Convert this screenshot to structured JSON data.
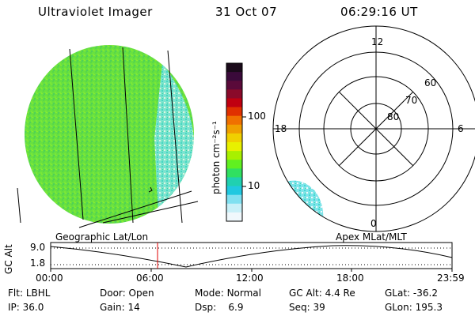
{
  "header": {
    "instrument": "Ultraviolet Imager",
    "date": "31 Oct 07",
    "time": "06:29:16 UT"
  },
  "colorbar": {
    "label": "photon cm⁻²s⁻¹",
    "ticks": [
      "100",
      "10"
    ],
    "colors": [
      "#1a0a1a",
      "#3a0a3a",
      "#5a0a3a",
      "#8a0a2a",
      "#c00010",
      "#e03000",
      "#f07000",
      "#f0a000",
      "#f0d000",
      "#e8f000",
      "#a8f000",
      "#60f020",
      "#30e060",
      "#20d0b0",
      "#20c8e0",
      "#80e0f0",
      "#c8f0f8",
      "#f0f8fc"
    ]
  },
  "polar": {
    "mlt_labels": {
      "top": "12",
      "left": "18",
      "right": "6",
      "bottom": "0"
    },
    "lat_labels": [
      "60",
      "70",
      "80"
    ]
  },
  "strip": {
    "left_label": "Geographic Lat/Lon",
    "right_label": "Apex  MLat/MLT",
    "axis_label": "GC Alt",
    "y_ticks": [
      "9.0",
      "1.8"
    ],
    "x_ticks": [
      "00:00",
      "06:00",
      "12:00",
      "18:00",
      "23:59"
    ]
  },
  "info": {
    "row1": [
      {
        "label": "Flt:",
        "value": "LBHL"
      },
      {
        "label": "Door:",
        "value": "Open"
      },
      {
        "label": "Mode:",
        "value": "Normal"
      },
      {
        "label": "GC Alt:",
        "value": "4.4 Re"
      },
      {
        "label": "GLat:",
        "value": "-36.2"
      }
    ],
    "row2": [
      {
        "label": "IP:",
        "value": "36.0"
      },
      {
        "label": "Gain:",
        "value": "14"
      },
      {
        "label": "Dsp:",
        "value": "6.9"
      },
      {
        "label": "Seq:",
        "value": "39"
      },
      {
        "label": "GLon:",
        "value": "195.3"
      }
    ]
  }
}
